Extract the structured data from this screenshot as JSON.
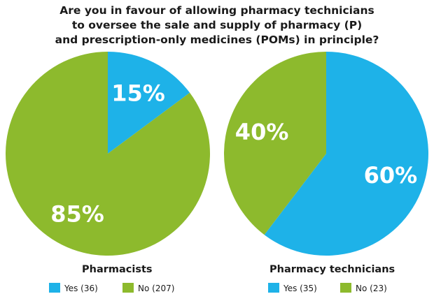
{
  "title_lines": [
    "Are you in favour of allowing pharmacy technicians",
    "to oversee the sale and supply of pharmacy (P)",
    "and prescription-only medicines (POMs) in principle?"
  ],
  "colors": {
    "yes": "#1eb2e8",
    "no": "#8dba2d"
  },
  "chart_data": [
    {
      "type": "pie",
      "title": "Pharmacists",
      "slices": [
        {
          "label": "Yes (36)",
          "value": 36,
          "percent_label": "15%",
          "color": "#1eb2e8"
        },
        {
          "label": "No (207)",
          "value": 207,
          "percent_label": "85%",
          "color": "#8dba2d"
        }
      ],
      "start_angle_deg": 0,
      "direction": "clockwise",
      "legend_placement": "bottom"
    },
    {
      "type": "pie",
      "title": "Pharmacy technicians",
      "slices": [
        {
          "label": "Yes (35)",
          "value": 35,
          "percent_label": "60%",
          "color": "#1eb2e8"
        },
        {
          "label": "No (23)",
          "value": 23,
          "percent_label": "40%",
          "color": "#8dba2d"
        }
      ],
      "start_angle_deg": 0,
      "direction": "clockwise",
      "legend_placement": "bottom"
    }
  ]
}
